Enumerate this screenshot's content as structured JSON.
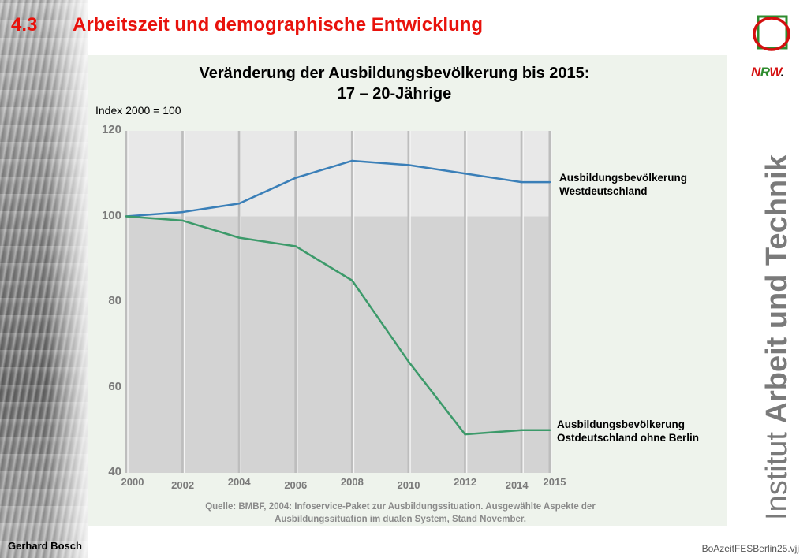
{
  "header": {
    "section_number": "4.3",
    "title": "Arbeitszeit und demographische Entwicklung"
  },
  "chart_title_line1": "Veränderung der Ausbildungsbevölkerung bis 2015:",
  "chart_title_line2": "17 – 20-Jährige",
  "index_note": "Index 2000 = 100",
  "source_line1": "Quelle: BMBF, 2004: Infoservice-Paket zur Ausbildungssituation. Ausgewählte Aspekte der",
  "source_line2": "Ausbildungssituation im dualen System, Stand November.",
  "footer": {
    "author": "Gerhard Bosch",
    "file": "BoAzeitFESBerlin25.vjj"
  },
  "logo": {
    "n": "N",
    "r": "R",
    "w": "W",
    "dot": ".",
    "institut_light": "Institut ",
    "institut_bold": "Arbeit und Technik"
  },
  "colors": {
    "title_red": "#e8120c",
    "west_line": "#3a7fb8",
    "east_line": "#3c9a6a",
    "upper_band": "#e8e8e8",
    "lower_band": "#d3d3d3",
    "panel": "#eef3ec"
  },
  "chart_data": {
    "type": "line",
    "x": [
      2000,
      2002,
      2004,
      2006,
      2008,
      2010,
      2012,
      2014,
      2015
    ],
    "x_tick_labels": [
      "2000",
      "2002",
      "2004",
      "2006",
      "2008",
      "2010",
      "2012",
      "2014",
      "2015"
    ],
    "y_tick_labels": [
      "120",
      "100",
      "80",
      "60",
      "40"
    ],
    "ylim": [
      40,
      120
    ],
    "xlim": [
      2000,
      2015
    ],
    "grid": "vertical",
    "series": [
      {
        "name": "Ausbildungsbevölkerung Westdeutschland",
        "name_line1": "Ausbildungsbevölkerung",
        "name_line2": "Westdeutschland",
        "values": [
          100,
          101,
          103,
          109,
          113,
          112,
          110,
          108,
          108
        ]
      },
      {
        "name": "Ausbildungsbevölkerung Ostdeutschland ohne Berlin",
        "name_line1": "Ausbildungsbevölkerung",
        "name_line2": "Ostdeutschland ohne Berlin",
        "values": [
          100,
          99,
          95,
          93,
          85,
          66,
          49,
          50,
          50
        ]
      }
    ]
  }
}
